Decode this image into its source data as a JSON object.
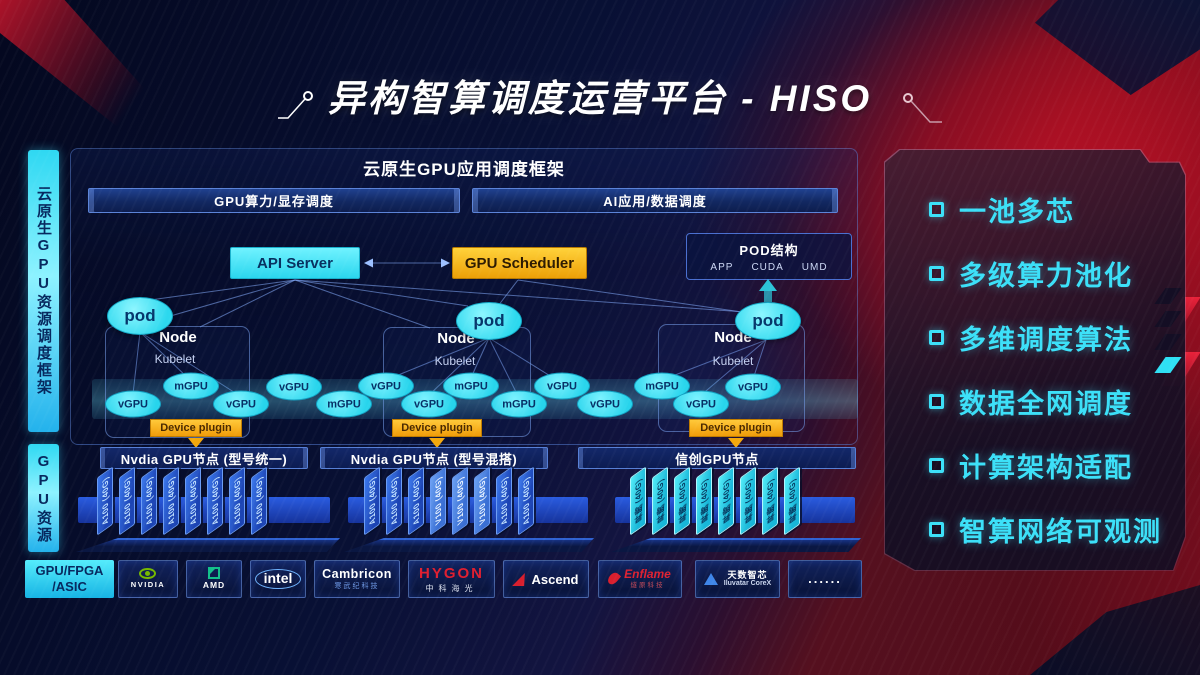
{
  "title": "异构智算调度运营平台 - HISO",
  "sidebar": {
    "top": "云原生GPU资源调度框架",
    "bottom": "GPU资源"
  },
  "framework": {
    "header": "云原生GPU应用调度框架",
    "scheduling_bars": [
      "GPU算力/显存调度",
      "AI应用/数据调度"
    ],
    "api_server": "API Server",
    "gpu_scheduler": "GPU Scheduler",
    "pod_structure": {
      "title": "POD结构",
      "items": [
        "APP",
        "CUDA",
        "UMD"
      ]
    },
    "gpu_pool": [
      "vGPU",
      "mGPU",
      "vGPU",
      "vGPU",
      "mGPU",
      "vGPU",
      "vGPU",
      "mGPU",
      "mGPU",
      "vGPU",
      "vGPU",
      "mGPU",
      "vGPU",
      "vGPU"
    ],
    "node_groups": [
      {
        "pod": "pod",
        "node": "Node",
        "kubelet": "Kubelet",
        "device_plugin": "Device plugin",
        "bar": "Nvdia GPU节点 (型号统一)",
        "cards": [
          "A100 (40G)",
          "A100 (40G)",
          "A100 (40G)",
          "A100 (40G)",
          "A100 (40G)",
          "A100 (40G)",
          "A100 (40G)",
          "A100 (40G)"
        ]
      },
      {
        "pod": "pod",
        "node": "Node",
        "kubelet": "Kubelet",
        "device_plugin": "Device plugin",
        "bar": "Nvdia GPU节点 (型号混搭)",
        "cards": [
          "A100 (40G)",
          "A100 (40G)",
          "A100 (40G)",
          "V100 (40G)",
          "V100 (40G)",
          "V100 (40G)",
          "A100 (40G)",
          "A100 (40G)"
        ]
      },
      {
        "pod": "pod",
        "node": "Node",
        "kubelet": "Kubelet",
        "device_plugin": "Device plugin",
        "bar": "信创GPU节点",
        "cards": [
          "昇腾 (40G)",
          "昇腾 (40G)",
          "昇腾 (40G)",
          "昇腾 (40G)",
          "昇腾 (40G)",
          "昇腾 (40G)",
          "昇腾 (40G)",
          "昇腾 (40G)"
        ]
      }
    ]
  },
  "features": [
    "一池多芯",
    "多级算力池化",
    "多维调度算法",
    "数据全网调度",
    "计算架构适配",
    "智算网络可观测"
  ],
  "hardware": {
    "label_line1": "GPU/FPGA",
    "label_line2": "/ASIC",
    "vendors": [
      {
        "id": "nvidia",
        "name": "NVIDIA",
        "sub": ""
      },
      {
        "id": "amd",
        "name": "AMD",
        "sub": ""
      },
      {
        "id": "intel",
        "name": "intel",
        "sub": ""
      },
      {
        "id": "cambricon",
        "name": "Cambricon",
        "sub": "寒武纪科技"
      },
      {
        "id": "hygon",
        "name": "HYGON",
        "sub": "中科海光"
      },
      {
        "id": "ascend",
        "name": "Ascend",
        "sub": ""
      },
      {
        "id": "enflame",
        "name": "Enflame",
        "sub": "燧原科技"
      },
      {
        "id": "iluvatar",
        "name": "天数智芯",
        "sub": "Iluvatar CoreX"
      },
      {
        "id": "more",
        "name": "......",
        "sub": ""
      }
    ]
  },
  "colors": {
    "cyan": "#3ce0f8",
    "yellow": "#f3a80c",
    "card_blue": "#2a5ce0",
    "accent_red": "#c11226"
  }
}
